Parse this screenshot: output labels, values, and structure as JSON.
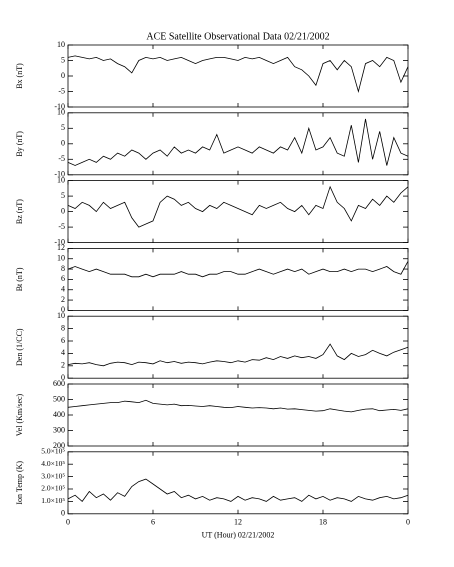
{
  "chart_data": [
    {
      "type": "line",
      "title": "ACE Satellite Observational Data   02/21/2002",
      "ylabel": "Bx (nT)",
      "color": "#000000",
      "x": [
        0,
        0.5,
        1,
        1.5,
        2,
        2.5,
        3,
        3.5,
        4,
        4.5,
        5,
        5.5,
        6,
        6.5,
        7,
        7.5,
        8,
        8.5,
        9,
        9.5,
        10,
        10.5,
        11,
        11.5,
        12,
        12.5,
        13,
        13.5,
        14,
        14.5,
        15,
        15.5,
        16,
        16.5,
        17,
        17.5,
        18,
        18.5,
        19,
        19.5,
        20,
        20.5,
        21,
        21.5,
        22,
        22.5,
        23,
        23.5,
        24
      ],
      "values": [
        6,
        6.5,
        6,
        5.5,
        6,
        5,
        5.5,
        4,
        3,
        1,
        5,
        6,
        5.5,
        6,
        5,
        5.5,
        6,
        5,
        4,
        5,
        5.5,
        6,
        6,
        5.5,
        5,
        6,
        5.5,
        6,
        5,
        4,
        5,
        6,
        3,
        2,
        0,
        -3,
        4,
        5,
        2,
        5,
        3,
        -5,
        4,
        5,
        3,
        6,
        5,
        -2,
        3
      ],
      "ylim": [
        -10,
        10
      ],
      "yticks": [
        -10,
        -5,
        0,
        5,
        10
      ]
    },
    {
      "type": "line",
      "ylabel": "By (nT)",
      "color": "#000000",
      "x": [
        0,
        0.5,
        1,
        1.5,
        2,
        2.5,
        3,
        3.5,
        4,
        4.5,
        5,
        5.5,
        6,
        6.5,
        7,
        7.5,
        8,
        8.5,
        9,
        9.5,
        10,
        10.5,
        11,
        11.5,
        12,
        12.5,
        13,
        13.5,
        14,
        14.5,
        15,
        15.5,
        16,
        16.5,
        17,
        17.5,
        18,
        18.5,
        19,
        19.5,
        20,
        20.5,
        21,
        21.5,
        22,
        22.5,
        23,
        23.5,
        24
      ],
      "values": [
        -6,
        -7,
        -6,
        -5,
        -6,
        -4,
        -5,
        -3,
        -4,
        -2,
        -3,
        -5,
        -3,
        -2,
        -4,
        -1,
        -3,
        -2,
        -3,
        -1,
        -2,
        3,
        -3,
        -2,
        -1,
        -2,
        -3,
        -1,
        -2,
        -3,
        -1,
        -2,
        2,
        -3,
        5,
        -2,
        -1,
        2,
        -3,
        -4,
        6,
        -6,
        8,
        -5,
        4,
        -7,
        2,
        -3,
        -4
      ],
      "ylim": [
        -10,
        10
      ],
      "yticks": [
        -10,
        -5,
        0,
        5,
        10
      ]
    },
    {
      "type": "line",
      "ylabel": "Bz (nT)",
      "color": "#000000",
      "x": [
        0,
        0.5,
        1,
        1.5,
        2,
        2.5,
        3,
        3.5,
        4,
        4.5,
        5,
        5.5,
        6,
        6.5,
        7,
        7.5,
        8,
        8.5,
        9,
        9.5,
        10,
        10.5,
        11,
        11.5,
        12,
        12.5,
        13,
        13.5,
        14,
        14.5,
        15,
        15.5,
        16,
        16.5,
        17,
        17.5,
        18,
        18.5,
        19,
        19.5,
        20,
        20.5,
        21,
        21.5,
        22,
        22.5,
        23,
        23.5,
        24
      ],
      "values": [
        2,
        1,
        3,
        2,
        0,
        3,
        1,
        2,
        3,
        -2,
        -5,
        -4,
        -3,
        3,
        5,
        4,
        2,
        3,
        1,
        0,
        2,
        1,
        3,
        2,
        1,
        0,
        -1,
        2,
        1,
        2,
        3,
        1,
        0,
        2,
        -1,
        2,
        1,
        8,
        3,
        1,
        -3,
        2,
        1,
        4,
        2,
        5,
        3,
        6,
        8
      ],
      "ylim": [
        -10,
        10
      ],
      "yticks": [
        -10,
        -5,
        0,
        5,
        10
      ]
    },
    {
      "type": "line",
      "ylabel": "Bt (nT)",
      "color": "#000000",
      "x": [
        0,
        0.5,
        1,
        1.5,
        2,
        2.5,
        3,
        3.5,
        4,
        4.5,
        5,
        5.5,
        6,
        6.5,
        7,
        7.5,
        8,
        8.5,
        9,
        9.5,
        10,
        10.5,
        11,
        11.5,
        12,
        12.5,
        13,
        13.5,
        14,
        14.5,
        15,
        15.5,
        16,
        16.5,
        17,
        17.5,
        18,
        18.5,
        19,
        19.5,
        20,
        20.5,
        21,
        21.5,
        22,
        22.5,
        23,
        23.5,
        24
      ],
      "values": [
        8,
        8.5,
        8,
        7.5,
        8,
        7.5,
        7,
        7,
        7,
        6.5,
        6.5,
        7,
        6.5,
        7,
        7,
        7,
        7.5,
        7,
        7,
        6.5,
        7,
        7,
        7.5,
        7.5,
        7,
        7,
        7.5,
        8,
        7.5,
        7,
        7.5,
        8,
        7.5,
        8,
        7,
        7.5,
        8,
        7.5,
        7.5,
        8,
        7.5,
        8,
        8,
        7.5,
        8,
        8.5,
        7.5,
        7,
        9.5
      ],
      "ylim": [
        0,
        12
      ],
      "yticks": [
        0,
        2,
        4,
        6,
        8,
        10,
        12
      ]
    },
    {
      "type": "line",
      "ylabel": "Den (1/CC)",
      "color": "#000000",
      "x": [
        0,
        0.5,
        1,
        1.5,
        2,
        2.5,
        3,
        3.5,
        4,
        4.5,
        5,
        5.5,
        6,
        6.5,
        7,
        7.5,
        8,
        8.5,
        9,
        9.5,
        10,
        10.5,
        11,
        11.5,
        12,
        12.5,
        13,
        13.5,
        14,
        14.5,
        15,
        15.5,
        16,
        16.5,
        17,
        17.5,
        18,
        18.5,
        19,
        19.5,
        20,
        20.5,
        21,
        21.5,
        22,
        22.5,
        23,
        23.5,
        24
      ],
      "values": [
        2.2,
        2.4,
        2.3,
        2.5,
        2.2,
        2,
        2.4,
        2.6,
        2.5,
        2.2,
        2.6,
        2.5,
        2.3,
        2.8,
        2.5,
        2.7,
        2.4,
        2.6,
        2.5,
        2.3,
        2.6,
        2.8,
        2.7,
        2.5,
        2.8,
        2.6,
        3,
        2.9,
        3.3,
        3,
        3.5,
        3.2,
        3.6,
        3.3,
        3.5,
        3.2,
        3.8,
        5.5,
        3.6,
        3,
        4,
        3.5,
        3.8,
        4.5,
        4,
        3.6,
        4.2,
        4.6,
        5
      ],
      "ylim": [
        0,
        10
      ],
      "yticks": [
        0,
        2,
        4,
        6,
        8,
        10
      ]
    },
    {
      "type": "line",
      "ylabel": "Vel (Km/sec)",
      "color": "#000000",
      "x": [
        0,
        0.5,
        1,
        1.5,
        2,
        2.5,
        3,
        3.5,
        4,
        4.5,
        5,
        5.5,
        6,
        6.5,
        7,
        7.5,
        8,
        8.5,
        9,
        9.5,
        10,
        10.5,
        11,
        11.5,
        12,
        12.5,
        13,
        13.5,
        14,
        14.5,
        15,
        15.5,
        16,
        16.5,
        17,
        17.5,
        18,
        18.5,
        19,
        19.5,
        20,
        20.5,
        21,
        21.5,
        22,
        22.5,
        23,
        23.5,
        24
      ],
      "values": [
        450,
        455,
        460,
        465,
        470,
        475,
        480,
        480,
        490,
        485,
        480,
        495,
        475,
        470,
        465,
        470,
        460,
        462,
        458,
        455,
        460,
        455,
        450,
        448,
        455,
        450,
        445,
        448,
        445,
        440,
        445,
        438,
        440,
        435,
        430,
        425,
        428,
        440,
        432,
        425,
        420,
        430,
        438,
        440,
        428,
        432,
        436,
        430,
        440
      ],
      "ylim": [
        200,
        600
      ],
      "yticks": [
        200,
        300,
        400,
        500,
        600
      ]
    },
    {
      "type": "line",
      "ylabel": "Ion Temp (K)",
      "xlabel": "UT (Hour)  02/21/2002",
      "color": "#000000",
      "x": [
        0,
        0.5,
        1,
        1.5,
        2,
        2.5,
        3,
        3.5,
        4,
        4.5,
        5,
        5.5,
        6,
        6.5,
        7,
        7.5,
        8,
        8.5,
        9,
        9.5,
        10,
        10.5,
        11,
        11.5,
        12,
        12.5,
        13,
        13.5,
        14,
        14.5,
        15,
        15.5,
        16,
        16.5,
        17,
        17.5,
        18,
        18.5,
        19,
        19.5,
        20,
        20.5,
        21,
        21.5,
        22,
        22.5,
        23,
        23.5,
        24
      ],
      "values": [
        120000,
        150000,
        100000,
        180000,
        130000,
        160000,
        110000,
        170000,
        140000,
        220000,
        260000,
        280000,
        240000,
        200000,
        160000,
        180000,
        130000,
        150000,
        120000,
        140000,
        110000,
        130000,
        120000,
        100000,
        140000,
        110000,
        130000,
        120000,
        100000,
        140000,
        110000,
        120000,
        130000,
        100000,
        150000,
        120000,
        140000,
        110000,
        130000,
        120000,
        100000,
        140000,
        120000,
        110000,
        130000,
        140000,
        120000,
        130000,
        150000
      ],
      "ylim": [
        0,
        500000
      ],
      "yticks": [
        0,
        {
          "value": 100000,
          "label": "1.0×10⁵"
        },
        {
          "value": 200000,
          "label": "2.0×10⁵"
        },
        {
          "value": 300000,
          "label": "3.0×10⁵"
        },
        {
          "value": 400000,
          "label": "4.0×10⁵"
        },
        {
          "value": 500000,
          "label": "5.0×10⁵"
        }
      ],
      "xlim": [
        0,
        24
      ],
      "xticks": [
        0,
        6,
        12,
        18,
        {
          "value": 24,
          "label": "0"
        }
      ]
    }
  ]
}
